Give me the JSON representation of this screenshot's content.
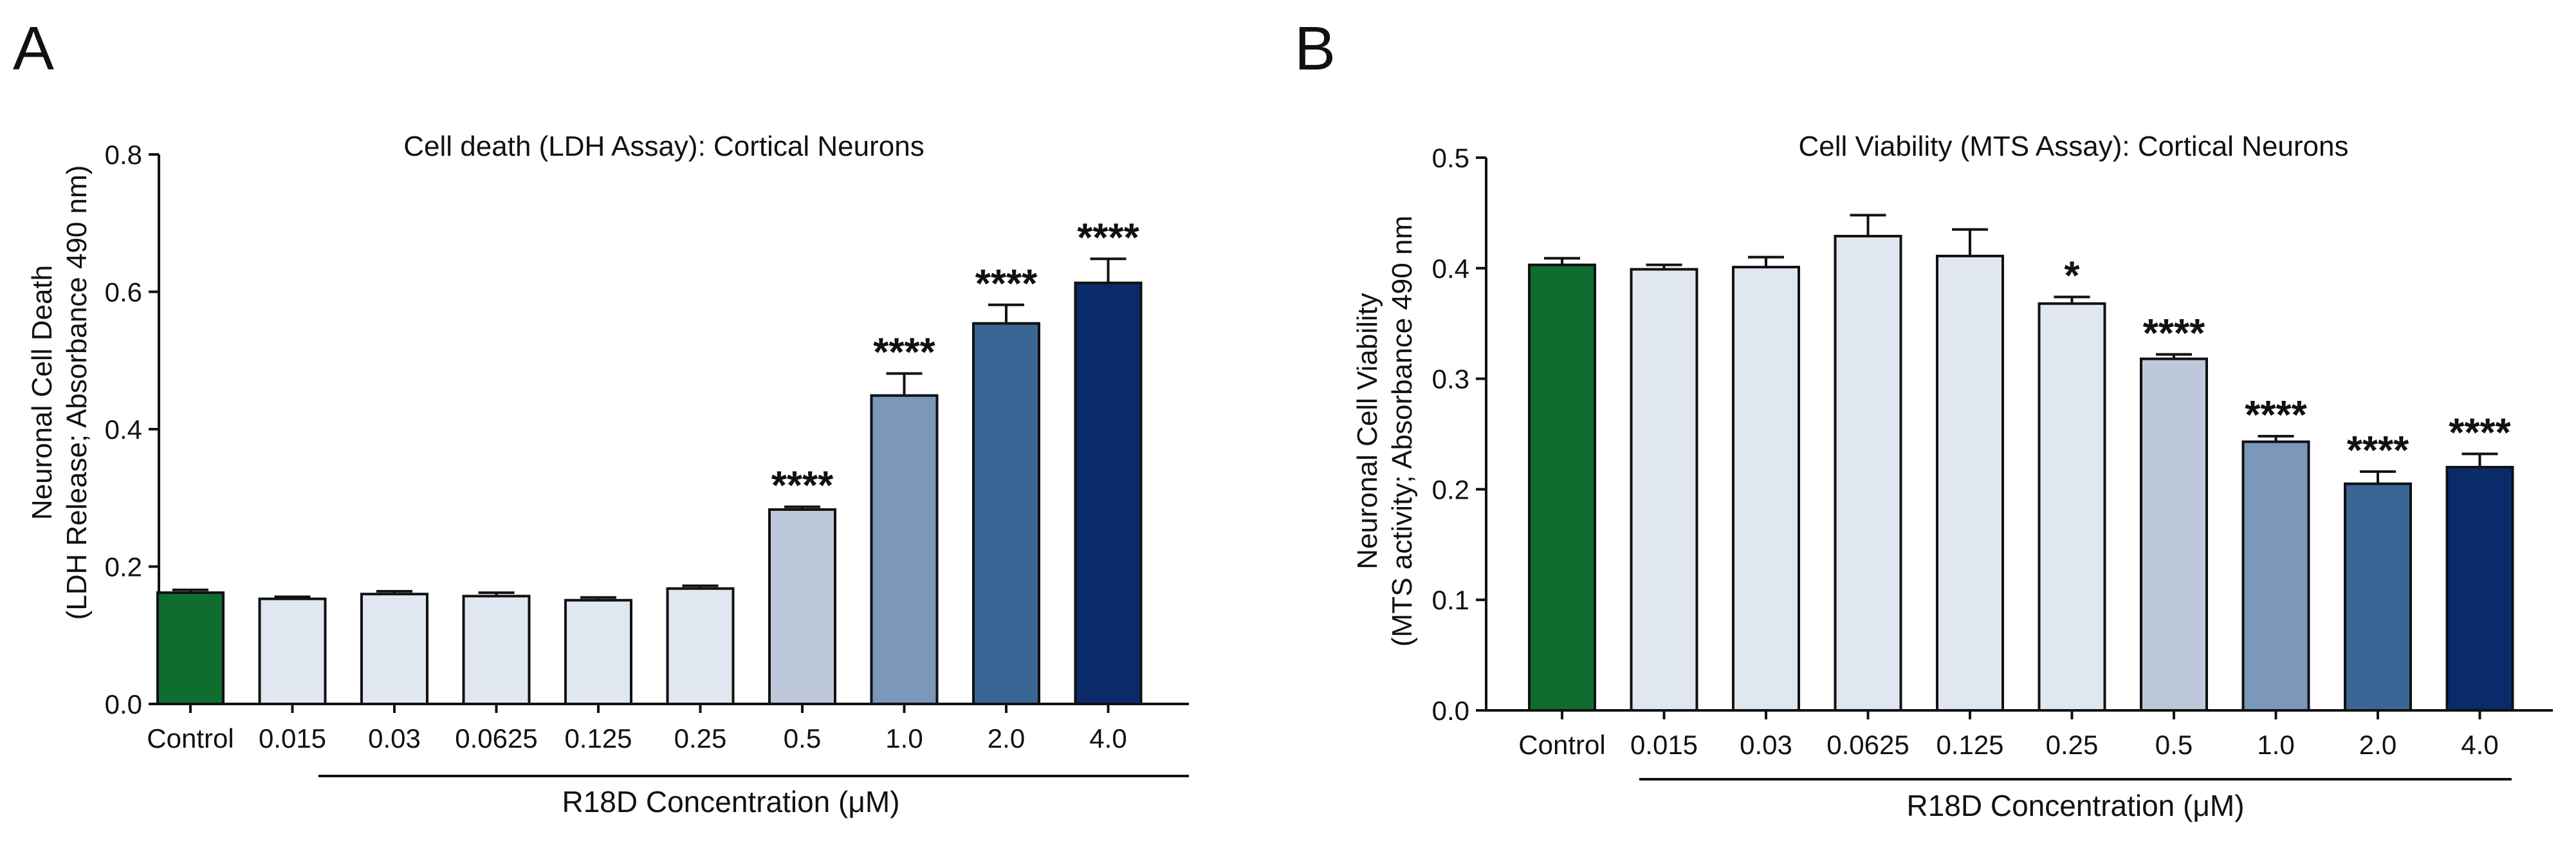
{
  "panels": [
    {
      "label": "A"
    },
    {
      "label": "B"
    }
  ],
  "chart_data": [
    {
      "type": "bar",
      "panel": "A",
      "title": "Cell death (LDH Assay): Cortical Neurons",
      "ylabel": [
        "Neuronal Cell Death",
        "(LDH Release; Absorbance 490 nm)"
      ],
      "xgroup_label": "R18D Concentration (μM)",
      "ylim": [
        0,
        0.8
      ],
      "yticks": [
        "0.0",
        "0.2",
        "0.4",
        "0.6",
        "0.8"
      ],
      "categories": [
        "Control",
        "0.015",
        "0.03",
        "0.0625",
        "0.125",
        "0.25",
        "0.5",
        "1.0",
        "2.0",
        "4.0"
      ],
      "values": [
        0.162,
        0.153,
        0.16,
        0.157,
        0.151,
        0.168,
        0.283,
        0.449,
        0.554,
        0.613
      ],
      "errors": [
        0.004,
        0.003,
        0.004,
        0.005,
        0.004,
        0.004,
        0.004,
        0.032,
        0.027,
        0.035
      ],
      "significance": [
        "",
        "",
        "",
        "",
        "",
        "",
        "****",
        "****",
        "****",
        "****"
      ],
      "colors": [
        "#0f6d2f",
        "#e0e7f0",
        "#e0e7f0",
        "#e0e7f0",
        "#e0e7f0",
        "#e0e7f0",
        "#bdc9db",
        "#7b98bb",
        "#3a6595",
        "#0b2a6a"
      ]
    },
    {
      "type": "bar",
      "panel": "B",
      "title": "Cell Viability (MTS Assay): Cortical Neurons",
      "ylabel": [
        "Neuronal Cell Viability",
        "(MTS activity; Absorbance 490 nm"
      ],
      "xgroup_label": "R18D Concentration (μM)",
      "ylim": [
        0,
        0.5
      ],
      "yticks": [
        "0.0",
        "0.1",
        "0.2",
        "0.3",
        "0.4",
        "0.5"
      ],
      "categories": [
        "Control",
        "0.015",
        "0.03",
        "0.0625",
        "0.125",
        "0.25",
        "0.5",
        "1.0",
        "2.0",
        "4.0"
      ],
      "values": [
        0.403,
        0.399,
        0.401,
        0.429,
        0.411,
        0.368,
        0.318,
        0.243,
        0.205,
        0.22
      ],
      "errors": [
        0.006,
        0.004,
        0.009,
        0.019,
        0.024,
        0.006,
        0.004,
        0.005,
        0.011,
        0.012
      ],
      "significance": [
        "",
        "",
        "",
        "",
        "",
        "*",
        "****",
        "****",
        "****",
        "****"
      ],
      "colors": [
        "#0f6d2f",
        "#e0e7f0",
        "#e0e7f0",
        "#e0e7f0",
        "#e0e7f0",
        "#e0e7f0",
        "#bdc9db",
        "#7b98bb",
        "#3a6595",
        "#0b2a6a"
      ]
    }
  ]
}
